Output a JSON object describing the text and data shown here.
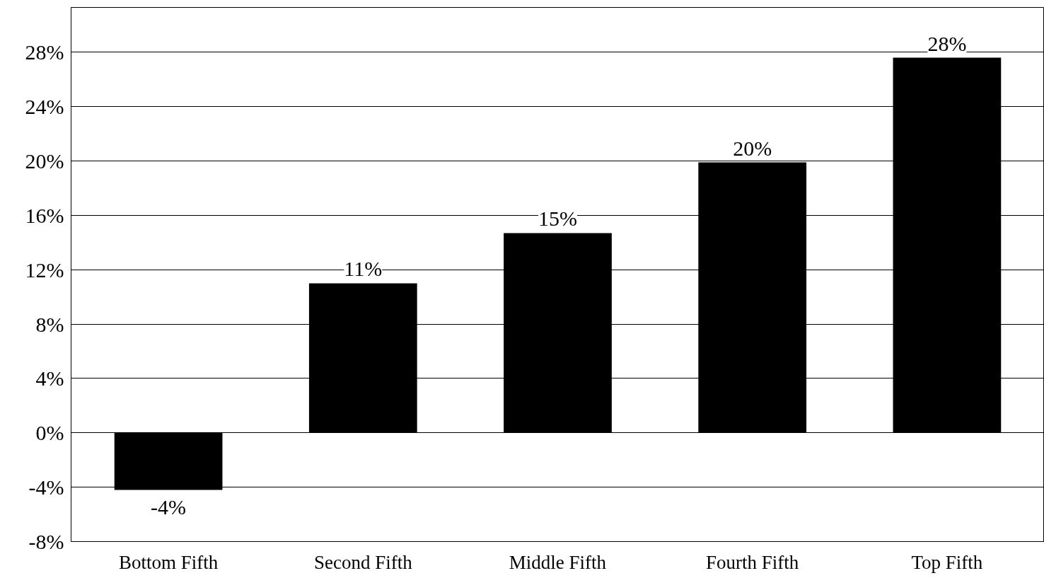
{
  "chart_data": {
    "type": "bar",
    "categories": [
      "Bottom Fifth",
      "Second Fifth",
      "Middle Fifth",
      "Fourth Fifth",
      "Top Fifth"
    ],
    "values": [
      -4.2,
      11.0,
      14.7,
      19.9,
      27.6
    ],
    "value_labels": [
      "-4%",
      "11%",
      "15%",
      "20%",
      "28%"
    ],
    "color": "#000000",
    "ylim": [
      -8,
      31.3
    ],
    "yticks": [
      {
        "value": -8,
        "label": "-8%"
      },
      {
        "value": -4,
        "label": "-4%"
      },
      {
        "value": 0,
        "label": "0%"
      },
      {
        "value": 4,
        "label": "4%"
      },
      {
        "value": 8,
        "label": "8%"
      },
      {
        "value": 12,
        "label": "12%"
      },
      {
        "value": 16,
        "label": "16%"
      },
      {
        "value": 20,
        "label": "20%"
      },
      {
        "value": 24,
        "label": "24%"
      },
      {
        "value": 28,
        "label": "28%"
      }
    ],
    "grid": "y"
  }
}
